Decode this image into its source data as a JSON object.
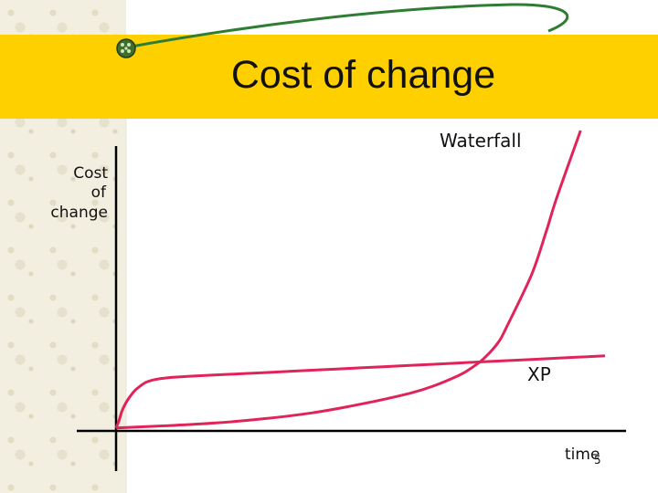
{
  "slide": {
    "title": "Cost of change",
    "slide_number": "5"
  },
  "colors": {
    "title_bar": "#ffd000",
    "curve": "#e0245a",
    "axis": "#000000",
    "texture": "#f2efe1"
  },
  "chart_data": {
    "type": "line",
    "title": "Cost of change",
    "xlabel": "time",
    "ylabel_lines": [
      "Cost",
      "of",
      "change"
    ],
    "xlim": [
      0,
      100
    ],
    "ylim": [
      0,
      100
    ],
    "grid": false,
    "series": [
      {
        "name": "Waterfall",
        "x": [
          0,
          10,
          20,
          30,
          40,
          50,
          60,
          65,
          70,
          72,
          75,
          78,
          80,
          85,
          88,
          90,
          95
        ],
        "y": [
          1,
          1.7,
          2.6,
          4,
          6,
          8.9,
          12.5,
          15,
          18.4,
          20.2,
          23.8,
          29.1,
          35,
          52.1,
          66.5,
          77,
          100
        ]
      },
      {
        "name": "XP",
        "x": [
          0,
          0.6,
          1.2,
          2,
          3,
          4,
          5,
          6,
          7,
          8,
          9,
          10,
          12,
          15,
          20,
          30,
          40,
          50,
          60,
          70,
          80,
          90,
          100
        ],
        "y": [
          1,
          3.4,
          6.6,
          9.3,
          11.8,
          13.7,
          15,
          16.1,
          16.7,
          17.1,
          17.4,
          17.6,
          17.9,
          18.2,
          18.6,
          19.4,
          20.2,
          21,
          21.8,
          22.6,
          23.4,
          24.2,
          25
        ]
      }
    ]
  }
}
